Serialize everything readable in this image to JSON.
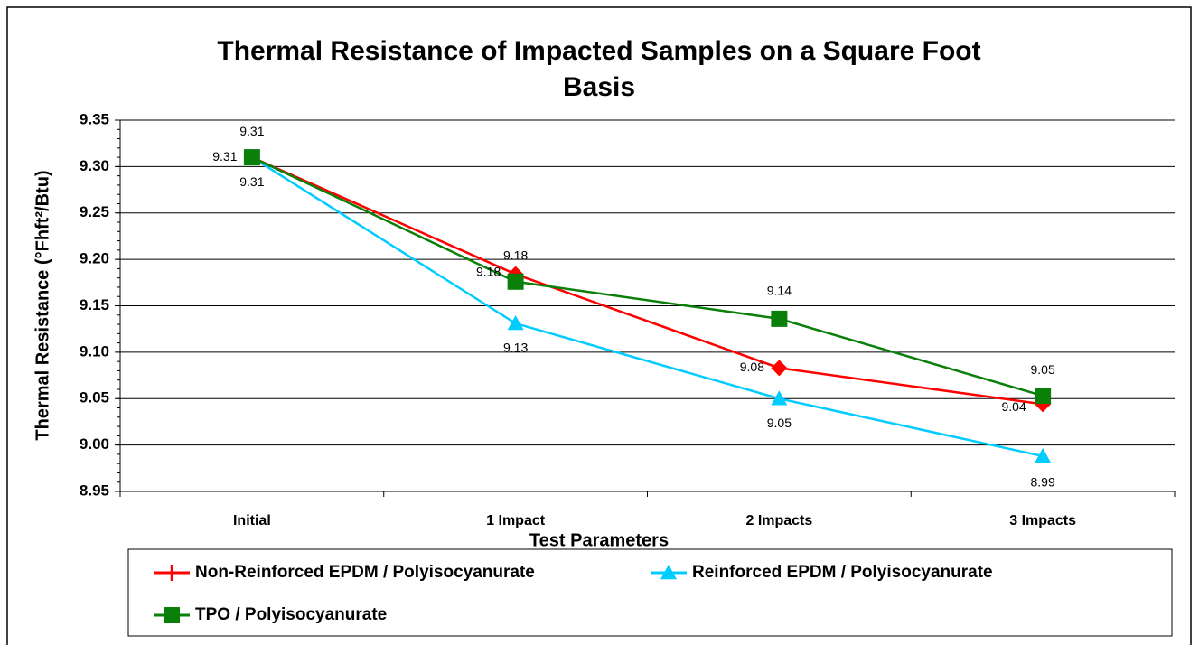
{
  "chart_data": {
    "type": "line",
    "title": [
      "Thermal Resistance of Impacted Samples on a Square Foot",
      "Basis"
    ],
    "y_label": "Thermal Resistance (°Fhft²/Btu)",
    "x_label": "Test Parameters",
    "categories": [
      "Initial",
      "1 Impact",
      "2 Impacts",
      "3 Impacts"
    ],
    "ylim": [
      8.95,
      9.35
    ],
    "yticks": [
      {
        "value": 8.95,
        "label": "8.95"
      },
      {
        "value": 9.0,
        "label": "9.00"
      },
      {
        "value": 9.05,
        "label": "9.05"
      },
      {
        "value": 9.1,
        "label": "9.10"
      },
      {
        "value": 9.15,
        "label": "9.15"
      },
      {
        "value": 9.2,
        "label": "9.20"
      },
      {
        "value": 9.25,
        "label": "9.25"
      },
      {
        "value": 9.3,
        "label": "9.30"
      },
      {
        "value": 9.35,
        "label": "9.35"
      }
    ],
    "grid": true,
    "legend": "bottom",
    "series": [
      {
        "name": "Non-Reinforced EPDM / Polyisocyanurate",
        "color": "#ff0000",
        "marker": "diamond",
        "values": [
          9.31,
          9.184,
          9.083,
          9.044
        ],
        "value_labels": [
          "9.31",
          "9.18",
          "9.08",
          "9.04"
        ]
      },
      {
        "name": "Reinforced EPDM / Polyisocyanurate",
        "color": "#00ccff",
        "marker": "triangle",
        "values": [
          9.31,
          9.131,
          9.05,
          8.988
        ],
        "value_labels": [
          "9.31",
          "9.13",
          "9.05",
          "8.99"
        ]
      },
      {
        "name": "TPO / Polyisocyanurate",
        "color": "#0a800a",
        "marker": "square",
        "values": [
          9.31,
          9.176,
          9.136,
          9.053
        ],
        "value_labels": [
          "9.31",
          "9.18",
          "9.14",
          "9.05"
        ]
      }
    ]
  }
}
